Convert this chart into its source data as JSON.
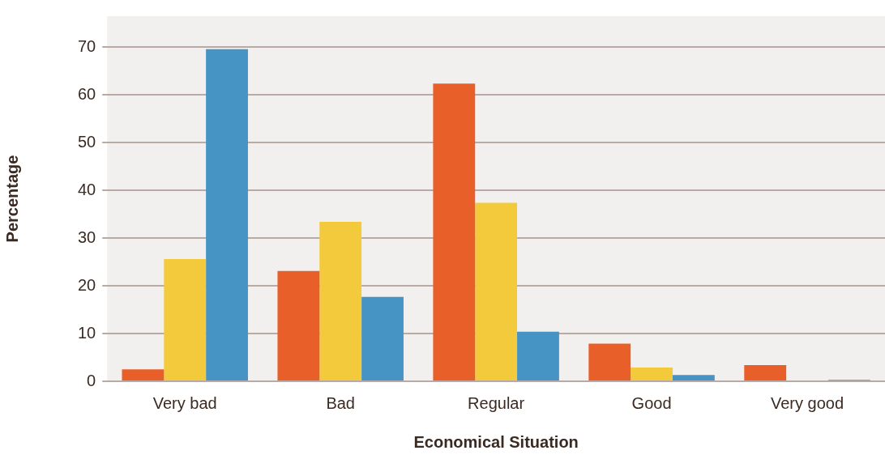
{
  "chart_data": {
    "type": "bar",
    "xlabel": "Economical Situation",
    "ylabel": "Percentage",
    "categories": [
      "Very bad",
      "Bad",
      "Regular",
      "Good",
      "Very good"
    ],
    "series": [
      {
        "color": "#e85f2a",
        "values": [
          2.5,
          23.1,
          62.4,
          7.9,
          3.4
        ]
      },
      {
        "color": "#f3ca3b",
        "values": [
          25.6,
          33.4,
          37.4,
          2.9,
          0
        ]
      },
      {
        "color": "#4594c4",
        "values": [
          69.6,
          17.7,
          10.4,
          1.3,
          0.3
        ]
      }
    ],
    "ylim": [
      0,
      76.5
    ],
    "yticks": [
      0,
      10,
      20,
      30,
      40,
      50,
      60,
      70
    ],
    "grid": "y",
    "legend": false
  }
}
